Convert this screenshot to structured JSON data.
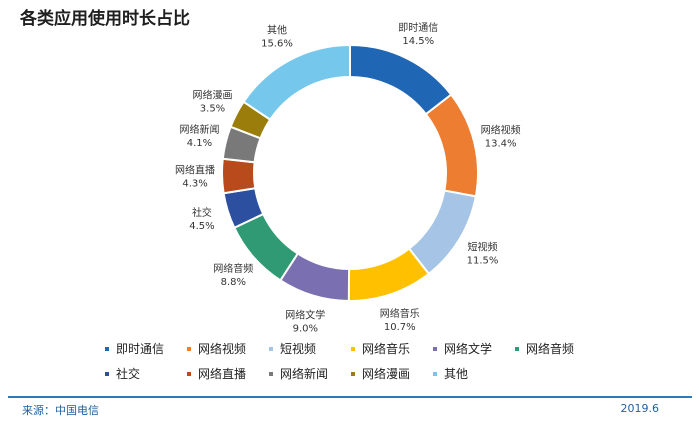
{
  "header": {
    "title": "各类应用使用时长占比"
  },
  "chart_data": {
    "type": "pie",
    "title": "各类应用使用时长占比",
    "donut": true,
    "legend_position": "bottom",
    "categories": [
      "即时通信",
      "网络视频",
      "短视频",
      "网络音乐",
      "网络文学",
      "网络音频",
      "社交",
      "网络直播",
      "网络新闻",
      "网络漫画",
      "其他"
    ],
    "values": [
      14.5,
      13.4,
      11.5,
      10.7,
      9.0,
      8.8,
      4.5,
      4.3,
      4.1,
      3.5,
      15.6
    ],
    "value_labels": [
      "14.5%",
      "13.4%",
      "11.5%",
      "10.7%",
      "9.0%",
      "8.8%",
      "4.5%",
      "4.3%",
      "4.1%",
      "3.5%",
      "15.6%"
    ],
    "colors": [
      "#1f67b4",
      "#ed7d31",
      "#a6c5e6",
      "#ffc000",
      "#7a6fb0",
      "#2f9a74",
      "#2c4fa0",
      "#b84a1b",
      "#797979",
      "#9a7d0a",
      "#75c8ec"
    ]
  },
  "footer": {
    "source": "来源：中国电信",
    "date": "2019.6"
  }
}
